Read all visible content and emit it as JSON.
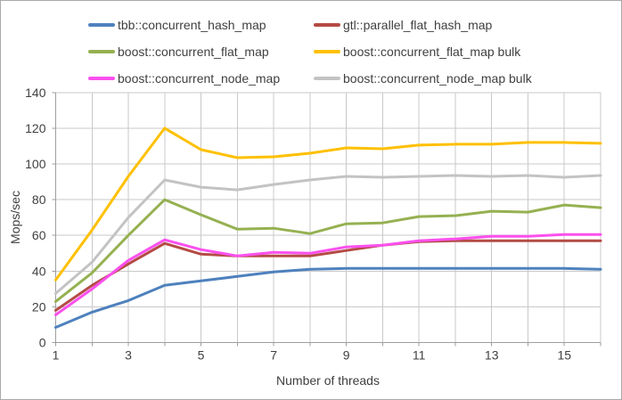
{
  "chart_data": {
    "type": "line",
    "title": "",
    "xlabel": "Number of threads",
    "ylabel": "Mops/sec",
    "x": [
      1,
      2,
      3,
      4,
      5,
      6,
      7,
      8,
      9,
      10,
      11,
      12,
      13,
      14,
      15,
      16
    ],
    "xlim": [
      1,
      16
    ],
    "ylim": [
      0,
      140
    ],
    "x_tick_labels": [
      1,
      3,
      5,
      7,
      9,
      11,
      13,
      15
    ],
    "y_tick_labels": [
      0,
      20,
      40,
      60,
      80,
      100,
      120,
      140
    ],
    "grid": true,
    "legend_position": "top",
    "legend_columns": 2,
    "series": [
      {
        "name": "tbb::concurrent_hash_map",
        "color": "#4E81BD",
        "values": [
          8.5,
          17,
          23.5,
          32,
          34.5,
          37,
          39.5,
          41,
          41.5,
          41.5,
          41.5,
          41.5,
          41.5,
          41.5,
          41.5,
          41
        ]
      },
      {
        "name": "gtl::parallel_flat_hash_map",
        "color": "#B44B45",
        "values": [
          18,
          32,
          44,
          55.5,
          49.5,
          48.5,
          48.5,
          48.5,
          51.5,
          54.5,
          56.5,
          57,
          57,
          57,
          57,
          57
        ]
      },
      {
        "name": "boost::concurrent_flat_map",
        "color": "#95B151",
        "values": [
          23,
          39,
          60,
          80,
          71.5,
          63.5,
          64,
          61,
          66.5,
          67,
          70.5,
          71,
          73.5,
          73,
          77,
          75.5
        ]
      },
      {
        "name": "boost::concurrent_flat_map bulk",
        "color": "#FFC000",
        "values": [
          35,
          63,
          93,
          120,
          108,
          103.5,
          104,
          106,
          109,
          108.5,
          110.5,
          111,
          111,
          112,
          112,
          111.5
        ]
      },
      {
        "name": "boost::concurrent_node_map",
        "color": "#FB50EE",
        "values": [
          15.5,
          30,
          46,
          57.5,
          52,
          48.5,
          50.5,
          50,
          53.5,
          54.5,
          57,
          58,
          59.5,
          59.5,
          60.5,
          60.5
        ]
      },
      {
        "name": "boost::concurrent_node_map bulk",
        "color": "#C3C3C3",
        "values": [
          27.5,
          45,
          70,
          91,
          87,
          85.5,
          88.5,
          91,
          93,
          92.5,
          93,
          93.5,
          93,
          93.5,
          92.5,
          93.5
        ]
      }
    ]
  },
  "styles": {
    "grid_color": "#c9c9c9",
    "axis_color": "#9e9e9e",
    "text_color": "#3f3f3f",
    "background": "#ffffff",
    "border_color": "#a9a9a9"
  }
}
